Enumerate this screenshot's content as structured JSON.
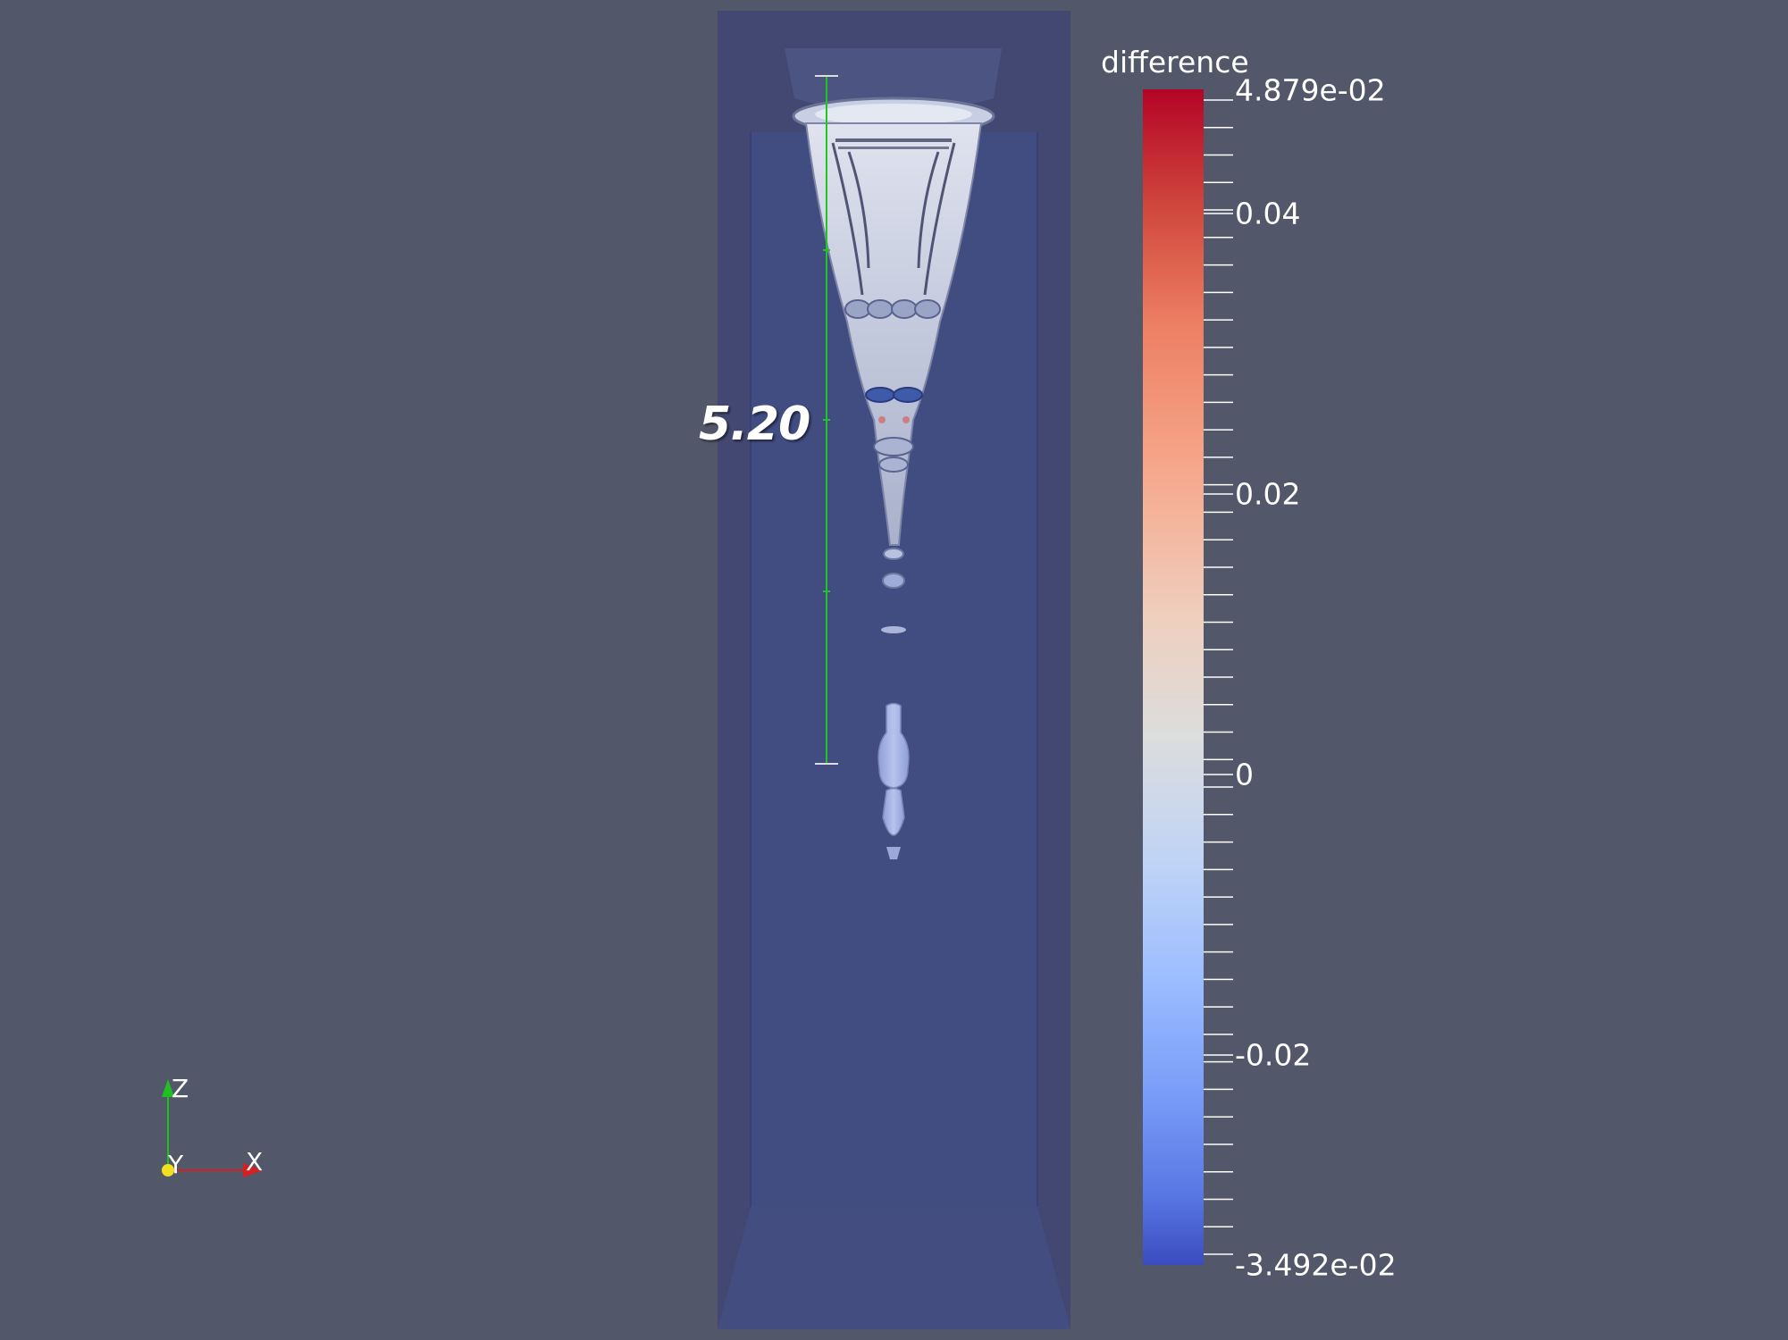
{
  "window": {
    "background_color": "#525769"
  },
  "ruler": {
    "value_label": "5.20",
    "color": "#21c421"
  },
  "colorbar": {
    "title": "difference",
    "max_label": "4.879e-02",
    "min_label": "-3.492e-02",
    "tick_labels": [
      "0.04",
      "0.02",
      "0",
      "-0.02"
    ],
    "colormap": "cool-to-warm",
    "top_color": "#b40426",
    "bottom_color": "#3b4cc0"
  },
  "orientation_axes": {
    "x_label": "X",
    "y_label": "Y",
    "z_label": "Z",
    "x_color": "#d42020",
    "y_color": "#f0e020",
    "z_color": "#20c020"
  }
}
